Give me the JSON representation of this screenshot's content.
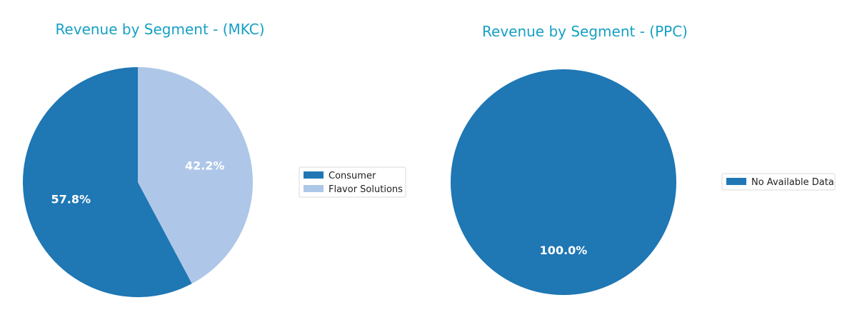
{
  "chart_data": [
    {
      "type": "pie",
      "title": "Revenue by Segment - (MKC)",
      "categories": [
        "Consumer",
        "Flavor Solutions"
      ],
      "values": [
        57.8,
        42.2
      ],
      "labels": [
        "57.8%",
        "42.2%"
      ],
      "colors": [
        "#1f77b4",
        "#aec7e8"
      ],
      "start_angle_deg": 90,
      "direction": "counterclockwise",
      "legend_placement": "right"
    },
    {
      "type": "pie",
      "title": "Revenue by Segment - (PPC)",
      "categories": [
        "No Available Data"
      ],
      "values": [
        100.0
      ],
      "labels": [
        "100.0%"
      ],
      "colors": [
        "#1f77b4"
      ],
      "start_angle_deg": 90,
      "direction": "counterclockwise",
      "legend_placement": "right"
    }
  ]
}
